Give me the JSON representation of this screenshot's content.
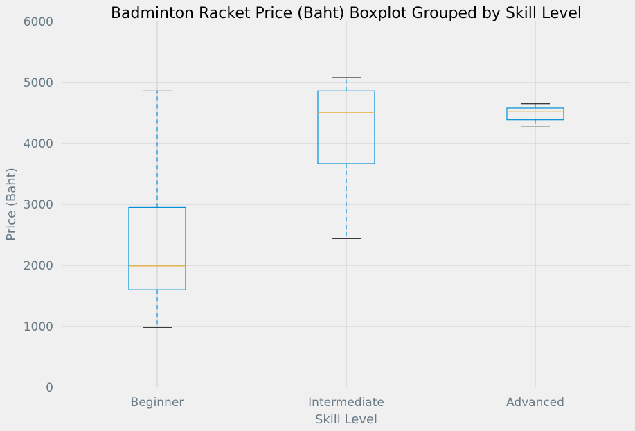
{
  "chart_data": {
    "type": "boxplot",
    "title": "Badminton Racket Price (Baht) Boxplot Grouped by Skill Level",
    "xlabel": "Skill Level",
    "ylabel": "Price (Baht)",
    "ylim": [
      0,
      6000
    ],
    "yticks": [
      0,
      1000,
      2000,
      3000,
      4000,
      5000,
      6000
    ],
    "grid": true,
    "categories": [
      "Beginner",
      "Intermediate",
      "Advanced"
    ],
    "boxes": [
      {
        "category": "Beginner",
        "whisker_low": 980,
        "q1": 1600,
        "median": 1990,
        "q3": 2950,
        "whisker_high": 4860
      },
      {
        "category": "Intermediate",
        "whisker_low": 2440,
        "q1": 3670,
        "median": 4510,
        "q3": 4860,
        "whisker_high": 5080
      },
      {
        "category": "Advanced",
        "whisker_low": 4270,
        "q1": 4390,
        "median": 4520,
        "q3": 4580,
        "whisker_high": 4650
      }
    ],
    "colors": {
      "box": "#008fd5",
      "median": "#e5ae38",
      "whisker": "#008fd5",
      "cap": "#000000",
      "grid": "#cbcbcb",
      "tick_text": "#677a85",
      "background": "#f0f0f0"
    }
  }
}
